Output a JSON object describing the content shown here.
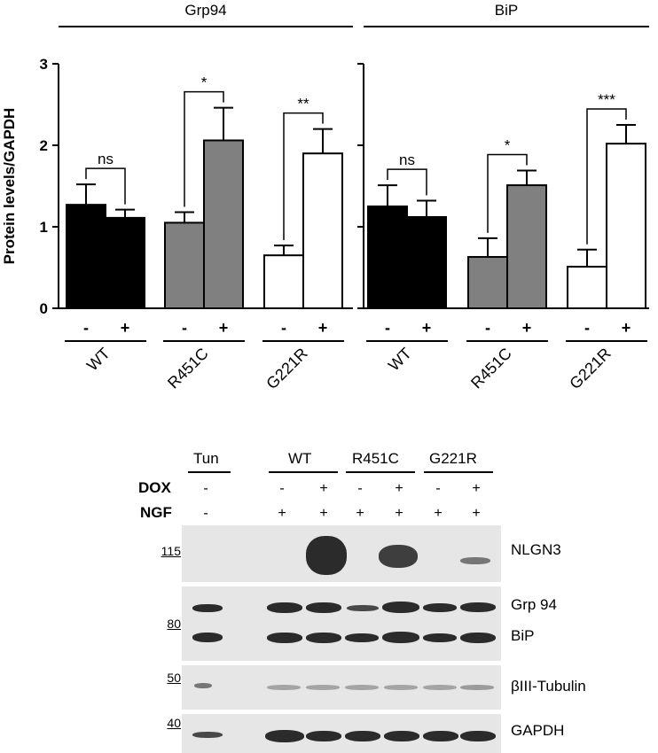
{
  "chart_data": {
    "type": "bar",
    "ylabel": "Protein levels/GAPDH",
    "ylim": [
      0,
      3
    ],
    "yticks": [
      "0",
      "1",
      "2",
      "3"
    ],
    "panels": [
      {
        "title": "Grp94",
        "groups": [
          {
            "name": "WT",
            "color": "#000000",
            "bars": [
              {
                "dox": "-",
                "value": 1.27,
                "error": 0.25
              },
              {
                "dox": "+",
                "value": 1.11,
                "error": 0.1
              }
            ],
            "sig": "ns"
          },
          {
            "name": "R451C",
            "color": "#808080",
            "bars": [
              {
                "dox": "-",
                "value": 1.05,
                "error": 0.13
              },
              {
                "dox": "+",
                "value": 2.06,
                "error": 0.4
              }
            ],
            "sig": "*"
          },
          {
            "name": "G221R",
            "color": "#ffffff",
            "bars": [
              {
                "dox": "-",
                "value": 0.65,
                "error": 0.12
              },
              {
                "dox": "+",
                "value": 1.9,
                "error": 0.3
              }
            ],
            "sig": "**"
          }
        ]
      },
      {
        "title": "BiP",
        "groups": [
          {
            "name": "WT",
            "color": "#000000",
            "bars": [
              {
                "dox": "-",
                "value": 1.25,
                "error": 0.26
              },
              {
                "dox": "+",
                "value": 1.12,
                "error": 0.2
              }
            ],
            "sig": "ns"
          },
          {
            "name": "R451C",
            "color": "#808080",
            "bars": [
              {
                "dox": "-",
                "value": 0.63,
                "error": 0.23
              },
              {
                "dox": "+",
                "value": 1.51,
                "error": 0.18
              }
            ],
            "sig": "*"
          },
          {
            "name": "G221R",
            "color": "#ffffff",
            "bars": [
              {
                "dox": "-",
                "value": 0.51,
                "error": 0.21
              },
              {
                "dox": "+",
                "value": 2.02,
                "error": 0.23
              }
            ],
            "sig": "***"
          }
        ]
      }
    ]
  },
  "blot": {
    "group_labels": [
      "Tun",
      "WT",
      "R451C",
      "G221R"
    ],
    "row_labels": {
      "dox": "DOX",
      "ngf": "NGF"
    },
    "dox": [
      "-",
      "-",
      "+",
      "-",
      "+",
      "-",
      "+"
    ],
    "ngf": [
      "-",
      "+",
      "+",
      "+",
      "+",
      "+",
      "+"
    ],
    "markers": [
      "115",
      "80",
      "50",
      "40"
    ],
    "proteins": [
      "NLGN3",
      "Grp 94",
      "BiP",
      "βIII-Tubulin",
      "GAPDH"
    ]
  }
}
